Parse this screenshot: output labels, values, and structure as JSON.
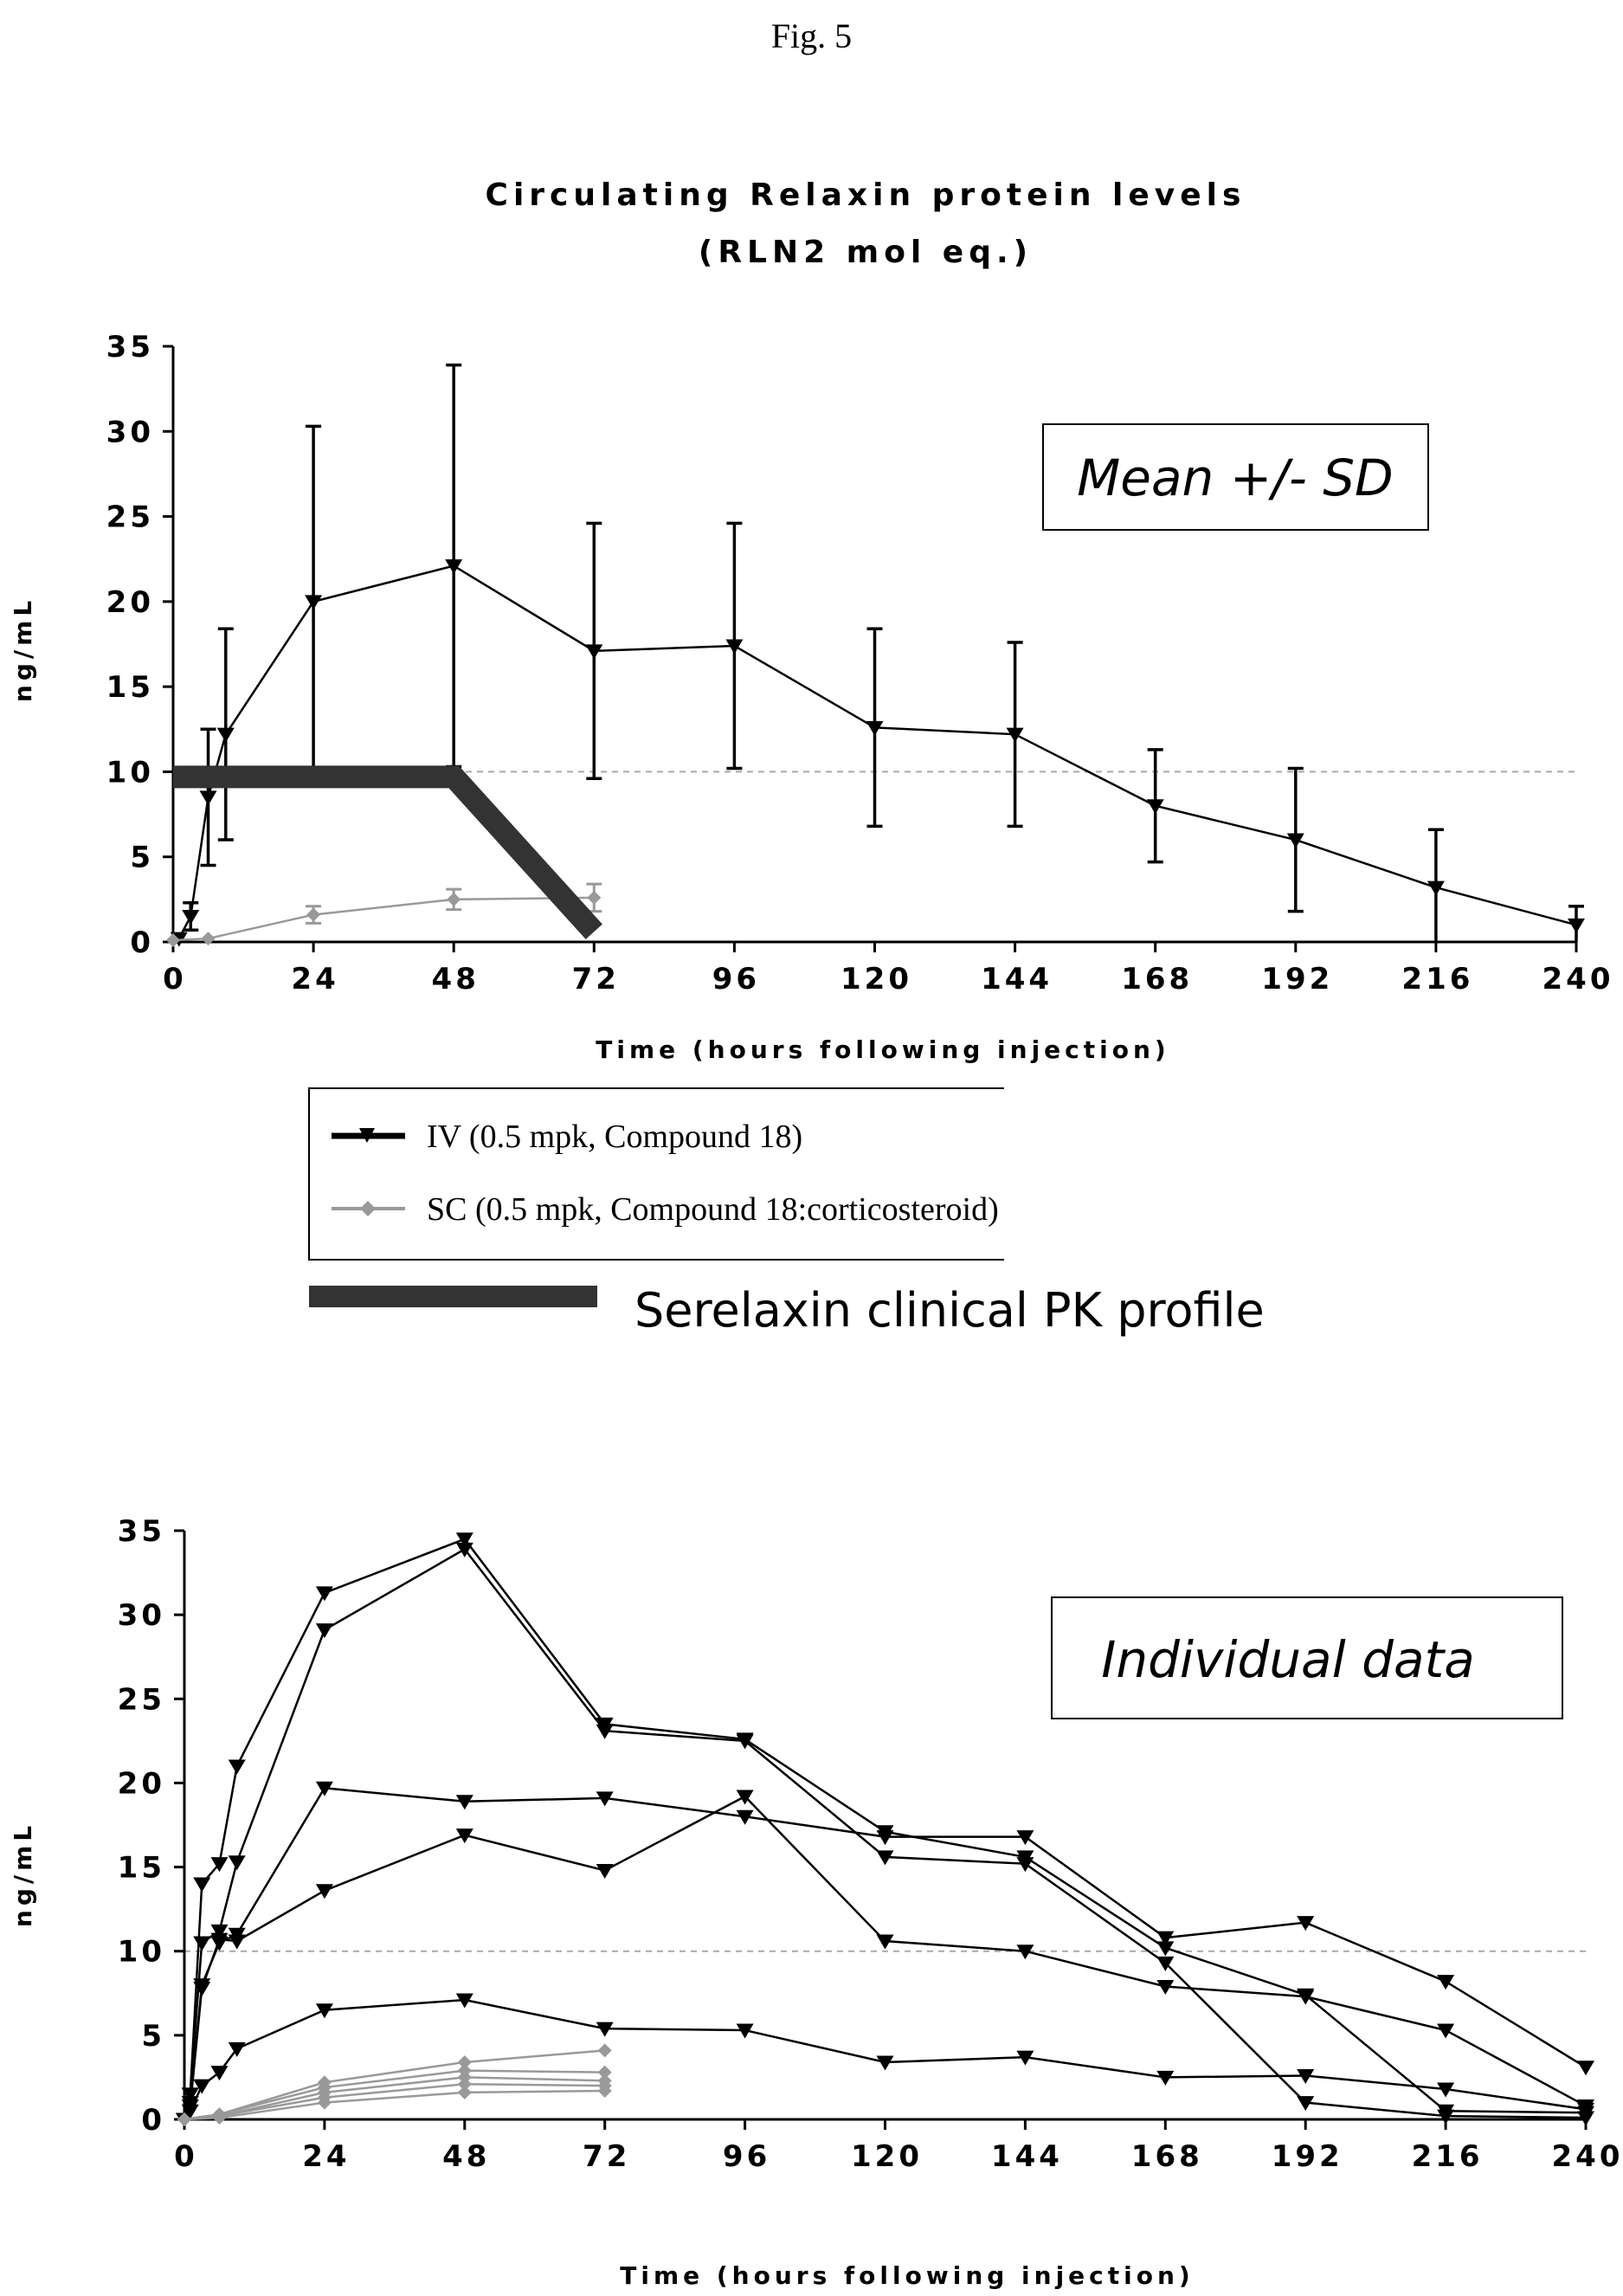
{
  "figure_label": "Fig. 5",
  "chart_data": [
    {
      "type": "line",
      "title": "Circulating Relaxin protein levels",
      "subtitle": "(RLN2 mol eq.)",
      "xlabel": "Time (hours following injection)",
      "ylabel": "ng/mL",
      "xlim": [
        0,
        240
      ],
      "ylim": [
        0,
        35
      ],
      "xticks": [
        "0",
        "24",
        "48",
        "72",
        "96",
        "120",
        "144",
        "168",
        "192",
        "216",
        "240"
      ],
      "yticks": [
        "0",
        "5",
        "10",
        "15",
        "20",
        "25",
        "30",
        "35"
      ],
      "annotation": "Mean +/- SD",
      "reference_line": 10,
      "legend": {
        "entries": [
          "IV (0.5 mpk, Compound 18)",
          "SC (0.5 mpk, Compound 18:corticosteroid)",
          "Serelaxin clinical PK profile"
        ]
      },
      "series": [
        {
          "name": "IV (0.5 mpk, Compound 18)",
          "color": "#000000",
          "marker": "triangle-down",
          "x": [
            1,
            3,
            6,
            9,
            24,
            48,
            72,
            96,
            120,
            144,
            168,
            192,
            216,
            240
          ],
          "y": [
            0.2,
            1.5,
            8.5,
            12.2,
            20,
            22.1,
            17.1,
            17.4,
            12.6,
            12.2,
            8,
            6,
            3.2,
            1
          ],
          "err": [
            0,
            0.8,
            4.0,
            6.2,
            10.3,
            11.8,
            7.5,
            7.2,
            5.8,
            5.4,
            3.3,
            4.2,
            3.4,
            1.1
          ]
        },
        {
          "name": "SC (0.5 mpk, Compound 18:corticosteroid)",
          "color": "#999999",
          "marker": "diamond",
          "x": [
            0,
            6,
            24,
            48,
            72
          ],
          "y": [
            0.1,
            0.2,
            1.6,
            2.5,
            2.6
          ],
          "err": [
            0,
            0,
            0.5,
            0.6,
            0.8
          ]
        },
        {
          "name": "Serelaxin clinical PK profile",
          "color": "#333333",
          "marker": "none",
          "x": [
            0,
            48,
            72
          ],
          "y": [
            9.7,
            9.7,
            0.6
          ]
        }
      ]
    },
    {
      "type": "line",
      "xlabel": "Time (hours following injection)",
      "ylabel": "ng/mL",
      "xlim": [
        0,
        240
      ],
      "ylim": [
        0,
        35
      ],
      "xticks": [
        "0",
        "24",
        "48",
        "72",
        "96",
        "120",
        "144",
        "168",
        "192",
        "216",
        "240"
      ],
      "yticks": [
        "0",
        "5",
        "10",
        "15",
        "20",
        "25",
        "30",
        "35"
      ],
      "annotation": "Individual data",
      "reference_line": 10,
      "series": [
        {
          "group": "IV",
          "color": "#000000",
          "marker": "triangle-down",
          "x": [
            0,
            1,
            3,
            6,
            9,
            24,
            48,
            72,
            96,
            120,
            144,
            168,
            192,
            216,
            240
          ],
          "y": [
            0,
            1.5,
            14,
            15.2,
            21,
            31.3,
            34.5,
            23.5,
            22.6,
            17.1,
            15.6,
            10.2,
            7.4,
            0.5,
            0.4
          ]
        },
        {
          "group": "IV",
          "color": "#000000",
          "marker": "triangle-down",
          "x": [
            0,
            1,
            3,
            6,
            9,
            24,
            48,
            72,
            96,
            120,
            144,
            168,
            192,
            216,
            240
          ],
          "y": [
            0,
            1.5,
            10.5,
            11.2,
            15.3,
            29.1,
            33.9,
            23.1,
            22.5,
            15.6,
            15.2,
            9.3,
            1,
            0.2,
            0.1
          ]
        },
        {
          "group": "IV",
          "color": "#000000",
          "marker": "triangle-down",
          "x": [
            0,
            1,
            3,
            6,
            9,
            24,
            48,
            72,
            96,
            120,
            144,
            168,
            192,
            216,
            240
          ],
          "y": [
            0,
            1,
            8,
            10.5,
            11,
            19.7,
            18.9,
            19.1,
            18,
            16.8,
            16.8,
            10.8,
            11.7,
            8.2,
            3.1
          ]
        },
        {
          "group": "IV",
          "color": "#000000",
          "marker": "triangle-down",
          "x": [
            0,
            1,
            3,
            6,
            9,
            24,
            48,
            72,
            96,
            120,
            144,
            168,
            192,
            216,
            240
          ],
          "y": [
            0,
            0.8,
            7.8,
            10.7,
            10.6,
            13.6,
            16.9,
            14.8,
            19.2,
            10.6,
            10,
            7.9,
            7.3,
            5.3,
            0.8
          ]
        },
        {
          "group": "IV",
          "color": "#000000",
          "marker": "triangle-down",
          "x": [
            0,
            1,
            3,
            6,
            9,
            24,
            48,
            72,
            96,
            120,
            144,
            168,
            192,
            216,
            240
          ],
          "y": [
            0,
            0.5,
            2,
            2.8,
            4.2,
            6.5,
            7.1,
            5.4,
            5.3,
            3.4,
            3.7,
            2.5,
            2.6,
            1.8,
            0.6
          ]
        },
        {
          "group": "SC",
          "color": "#999999",
          "marker": "diamond",
          "x": [
            0,
            6,
            24,
            48,
            72
          ],
          "y": [
            0,
            0.3,
            2.2,
            3.4,
            4.1
          ]
        },
        {
          "group": "SC",
          "color": "#999999",
          "marker": "diamond",
          "x": [
            0,
            6,
            24,
            48,
            72
          ],
          "y": [
            0,
            0.3,
            1.9,
            2.9,
            2.8
          ]
        },
        {
          "group": "SC",
          "color": "#999999",
          "marker": "diamond",
          "x": [
            0,
            6,
            24,
            48,
            72
          ],
          "y": [
            0,
            0.2,
            1.6,
            2.5,
            2.3
          ]
        },
        {
          "group": "SC",
          "color": "#999999",
          "marker": "diamond",
          "x": [
            0,
            6,
            24,
            48,
            72
          ],
          "y": [
            0,
            0.2,
            1.3,
            2.1,
            2.0
          ]
        },
        {
          "group": "SC",
          "color": "#999999",
          "marker": "diamond",
          "x": [
            0,
            6,
            24,
            48,
            72
          ],
          "y": [
            0,
            0.1,
            1.0,
            1.6,
            1.7
          ]
        }
      ]
    }
  ]
}
